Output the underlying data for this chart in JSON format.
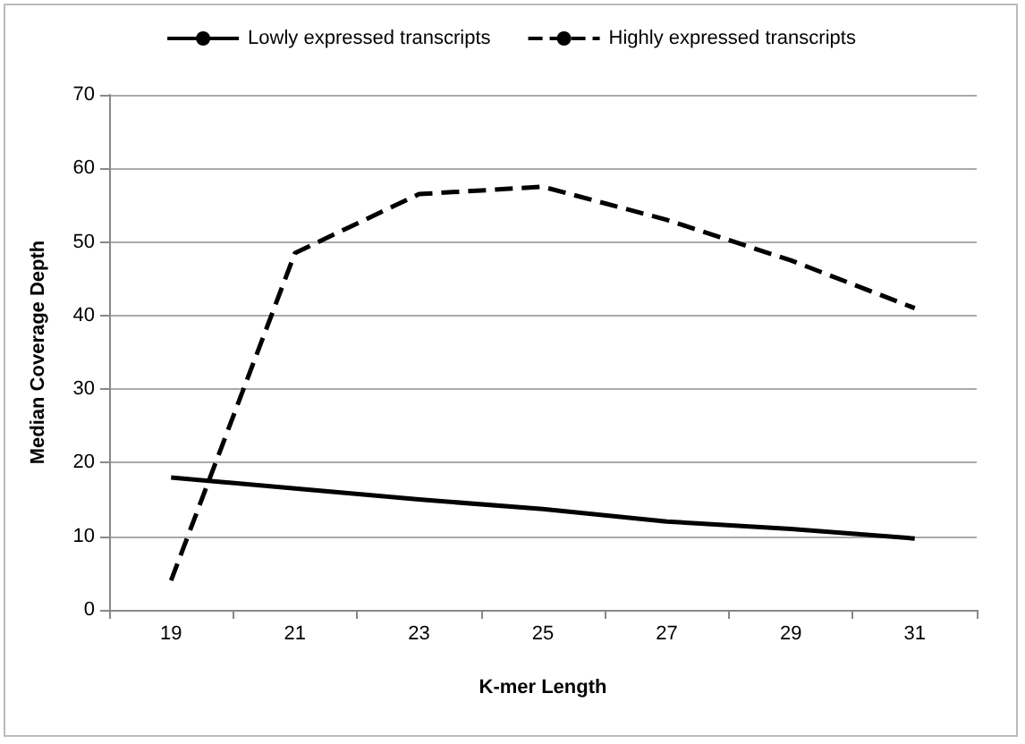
{
  "chart_data": {
    "type": "line",
    "xlabel": "K-mer Length",
    "ylabel": "Median Coverage Depth",
    "categories": [
      "19",
      "21",
      "23",
      "25",
      "27",
      "29",
      "31"
    ],
    "series": [
      {
        "name": "Lowly expressed transcripts",
        "color": "#000000",
        "line_style": "solid",
        "values": [
          18,
          16.5,
          15,
          13.7,
          12,
          11,
          9.7
        ]
      },
      {
        "name": "Highly expressed transcripts",
        "color": "#000000",
        "line_style": "dashed",
        "values": [
          4,
          48.5,
          56.5,
          57.5,
          53,
          47.5,
          41
        ]
      }
    ],
    "ylim": [
      0,
      70
    ],
    "yticks": [
      0,
      10,
      20,
      30,
      40,
      50,
      60,
      70
    ],
    "grid": "y",
    "legend": "top",
    "marker": "none"
  }
}
